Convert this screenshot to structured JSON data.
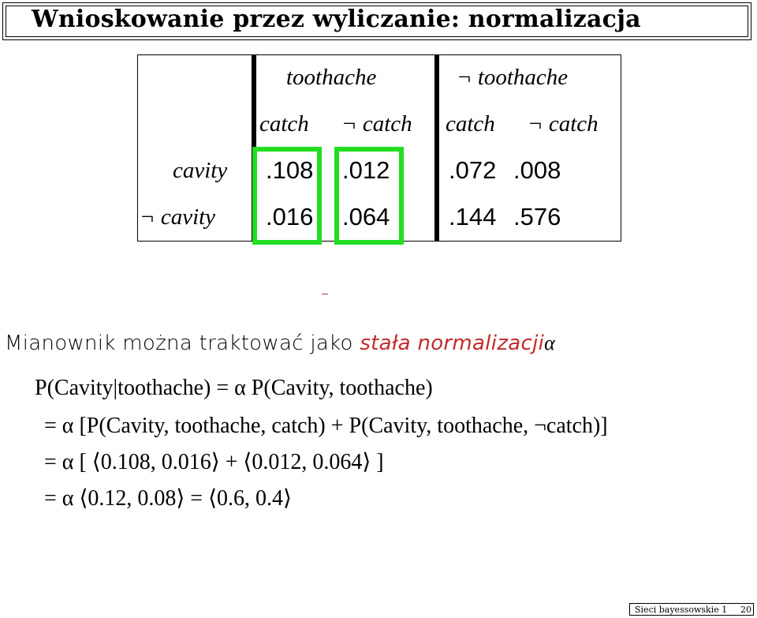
{
  "slide": {
    "title": "Wnioskowanie przez wyliczanie: normalizacja"
  },
  "table": {
    "top_header": {
      "toothache": "toothache",
      "not_toothache": "¬ toothache"
    },
    "sub_header": [
      "catch",
      "¬ catch",
      "catch",
      "¬ catch"
    ],
    "rows": [
      {
        "label": "cavity",
        "values": [
          ".108",
          ".012",
          ".072",
          ".008"
        ]
      },
      {
        "label": "¬ cavity",
        "values": [
          ".016",
          ".064",
          ".144",
          ".576"
        ]
      }
    ],
    "highlight_color": "#22dd22"
  },
  "text": {
    "mianownik_prefix": "Mianownik można traktować jako ",
    "mianownik_term": "stała normalizacji",
    "mianownik_symbol": "α",
    "term_color": "#c22b2b"
  },
  "equations": [
    "P(Cavity|toothache) = α P(Cavity, toothache)",
    "= α [P(Cavity, toothache, catch) + P(Cavity, toothache, ¬catch)]",
    "= α [ ⟨0.108, 0.016⟩ + ⟨0.012, 0.064⟩ ]",
    "= α ⟨0.12, 0.08⟩ = ⟨0.6, 0.4⟩"
  ],
  "footer": {
    "label": "Sieci bayessowskie 1",
    "page": "20"
  }
}
